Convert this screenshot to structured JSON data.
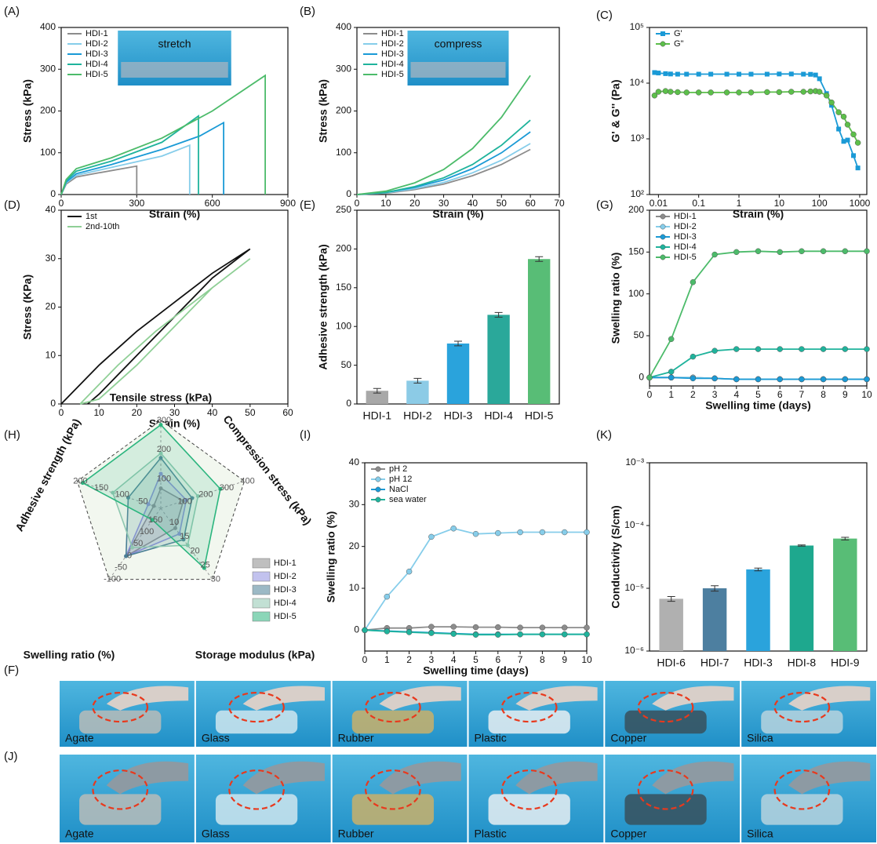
{
  "chart_data": [
    {
      "type": "line",
      "label": "(A)",
      "xlabel": "Strain (%)",
      "ylabel": "Stress (kPa)",
      "inset": "stretch",
      "legend": "upper left",
      "xlim": [
        0,
        900
      ],
      "xticks": [
        0,
        300,
        600,
        900
      ],
      "ylim": [
        0,
        400
      ],
      "yticks": [
        0,
        100,
        200,
        300,
        400
      ],
      "series": [
        {
          "name": "HDI-1",
          "color": "#8c8c8c",
          "x": [
            0,
            20,
            60,
            150,
            300,
            300
          ],
          "values": [
            0,
            25,
            42,
            52,
            68,
            0
          ]
        },
        {
          "name": "HDI-2",
          "color": "#86cdea",
          "x": [
            0,
            20,
            60,
            200,
            400,
            510,
            510
          ],
          "values": [
            0,
            28,
            46,
            65,
            92,
            118,
            0
          ]
        },
        {
          "name": "HDI-3",
          "color": "#1a9ad6",
          "x": [
            0,
            20,
            60,
            200,
            400,
            550,
            645,
            645
          ],
          "values": [
            0,
            30,
            50,
            72,
            108,
            140,
            172,
            0
          ]
        },
        {
          "name": "HDI-4",
          "color": "#1fb39c",
          "x": [
            0,
            20,
            60,
            200,
            400,
            545,
            545
          ],
          "values": [
            0,
            33,
            56,
            80,
            125,
            188,
            0
          ]
        },
        {
          "name": "HDI-5",
          "color": "#4cbb6a",
          "x": [
            0,
            20,
            60,
            200,
            400,
            600,
            810,
            810
          ],
          "values": [
            0,
            36,
            62,
            88,
            135,
            200,
            285,
            0
          ]
        }
      ]
    },
    {
      "type": "line",
      "label": "(B)",
      "xlabel": "Strain (%)",
      "ylabel": "Stress (kPa)",
      "inset": "compress",
      "legend": "upper left",
      "xlim": [
        0,
        70
      ],
      "xticks": [
        0,
        10,
        20,
        30,
        40,
        50,
        60,
        70
      ],
      "ylim": [
        0,
        400
      ],
      "yticks": [
        0,
        100,
        200,
        300,
        400
      ],
      "x": [
        0,
        10,
        20,
        30,
        40,
        50,
        60
      ],
      "series": [
        {
          "name": "HDI-1",
          "color": "#8c8c8c",
          "values": [
            0,
            3,
            12,
            25,
            45,
            72,
            108
          ]
        },
        {
          "name": "HDI-2",
          "color": "#86cdea",
          "values": [
            0,
            4,
            14,
            29,
            52,
            82,
            122
          ]
        },
        {
          "name": "HDI-3",
          "color": "#1a9ad6",
          "values": [
            0,
            5,
            17,
            35,
            62,
            100,
            150
          ]
        },
        {
          "name": "HDI-4",
          "color": "#1fb39c",
          "values": [
            0,
            5,
            19,
            40,
            72,
            118,
            178
          ]
        },
        {
          "name": "HDI-5",
          "color": "#4cbb6a",
          "values": [
            0,
            8,
            28,
            60,
            110,
            185,
            285
          ]
        }
      ]
    },
    {
      "type": "line",
      "label": "(C)",
      "xlabel": "Strain (%)",
      "ylabel": "G' & G'' (Pa)",
      "legend": "upper left",
      "markers": true,
      "xlog": true,
      "ylog": true,
      "xlim": [
        0.006,
        1500
      ],
      "xticks": [
        0.01,
        0.1,
        1,
        10,
        100,
        1000
      ],
      "ylim": [
        100,
        100000
      ],
      "yticks": [
        {
          "value": 100,
          "label": "10²"
        },
        {
          "value": 1000,
          "label": "10³"
        },
        {
          "value": 10000,
          "label": "10⁴"
        },
        {
          "value": 100000,
          "label": "10⁵"
        }
      ],
      "x": [
        0.008,
        0.01,
        0.015,
        0.02,
        0.03,
        0.05,
        0.1,
        0.2,
        0.5,
        1,
        2,
        5,
        10,
        20,
        40,
        60,
        80,
        100,
        150,
        200,
        300,
        400,
        500,
        700,
        900
      ],
      "series": [
        {
          "name": "G'",
          "color": "#1a9ad6",
          "marker": "square",
          "values": [
            15500,
            15200,
            14800,
            14600,
            14500,
            14500,
            14500,
            14500,
            14500,
            14500,
            14500,
            14500,
            14600,
            14600,
            14500,
            14400,
            14000,
            12000,
            6500,
            4000,
            1500,
            900,
            950,
            500,
            300
          ]
        },
        {
          "name": "G\"",
          "color": "#5cbf4a",
          "marker": "circle",
          "values": [
            6000,
            7000,
            7200,
            7000,
            6900,
            6800,
            6800,
            6800,
            6800,
            6800,
            6800,
            6900,
            6900,
            7000,
            7000,
            7100,
            7200,
            7000,
            6000,
            4500,
            3000,
            2500,
            1800,
            1200,
            850
          ]
        }
      ]
    },
    {
      "type": "line",
      "label": "(D)",
      "xlabel": "Strain (%)",
      "ylabel": "Stress (KPa)",
      "legend": "upper left",
      "xlim": [
        0,
        60
      ],
      "xticks": [
        0,
        10,
        20,
        30,
        40,
        50,
        60
      ],
      "ylim": [
        0,
        40
      ],
      "yticks": [
        0,
        10,
        20,
        30,
        40
      ],
      "series": [
        {
          "name": "1st",
          "color": "#111111",
          "x": [
            0,
            10,
            20,
            30,
            40,
            50,
            40,
            30,
            20,
            10,
            7
          ],
          "values": [
            0,
            8,
            15,
            21,
            27,
            32,
            26,
            18,
            10,
            2,
            0
          ]
        },
        {
          "name": "2nd-10th",
          "color": "#8fcf96",
          "x": [
            5,
            15,
            25,
            35,
            45,
            50,
            40,
            30,
            20,
            10,
            5
          ],
          "values": [
            0,
            8,
            15,
            21,
            27,
            30,
            24,
            16,
            8,
            1,
            0
          ]
        }
      ]
    },
    {
      "type": "bar",
      "label": "(E)",
      "ylabel": "Adhesive strength (kPa)",
      "ylim": [
        0,
        250
      ],
      "yticks": [
        0,
        50,
        100,
        150,
        200,
        250
      ],
      "categories": [
        "HDI-1",
        "HDI-2",
        "HDI-3",
        "HDI-4",
        "HDI-5"
      ],
      "values": [
        17,
        30,
        78,
        115,
        187
      ],
      "errors": [
        3,
        3,
        3,
        3,
        3
      ],
      "colors": [
        "#a8a8a8",
        "#8ccbe6",
        "#2aa3dc",
        "#2aa89a",
        "#58bd76"
      ]
    },
    {
      "type": "line",
      "label": "(G)",
      "xlabel": "Swelling time (days)",
      "ylabel": "Swelling ratio (%)",
      "legend": "upper left",
      "markers": true,
      "xlim": [
        0,
        10
      ],
      "xticks": [
        0,
        1,
        2,
        3,
        4,
        5,
        6,
        7,
        8,
        9,
        10
      ],
      "ylim": [
        -10,
        200
      ],
      "yticks": [
        0,
        50,
        100,
        150,
        200
      ],
      "x": [
        0,
        1,
        2,
        3,
        4,
        5,
        6,
        7,
        8,
        9,
        10
      ],
      "series": [
        {
          "name": "HDI-1",
          "color": "#8c8c8c",
          "values": [
            0,
            0,
            0,
            -1,
            -2,
            -2,
            -2,
            -2,
            -2,
            -2,
            -2
          ]
        },
        {
          "name": "HDI-2",
          "color": "#86cdea",
          "values": [
            0,
            0,
            0,
            -1,
            -2,
            -2,
            -2,
            -2,
            -2,
            -2,
            -2
          ]
        },
        {
          "name": "HDI-3",
          "color": "#1a9ad6",
          "values": [
            0,
            0,
            -1,
            -1,
            -2,
            -2,
            -2,
            -2,
            -2,
            -2,
            -2
          ]
        },
        {
          "name": "HDI-4",
          "color": "#1fb39c",
          "values": [
            0,
            7,
            25,
            32,
            34,
            34,
            34,
            34,
            34,
            34,
            34
          ]
        },
        {
          "name": "HDI-5",
          "color": "#4cbb6a",
          "values": [
            0,
            46,
            114,
            147,
            150,
            151,
            150,
            151,
            151,
            151,
            151
          ]
        }
      ]
    },
    {
      "type": "radar",
      "label": "(H)",
      "legend": "lower right",
      "axes": [
        {
          "name": "Tensile stress (kPa)",
          "lim": [
            0,
            300
          ],
          "ticks": [
            100,
            200,
            300
          ]
        },
        {
          "name": "Compression stress (kPa)",
          "lim": [
            0,
            400
          ],
          "ticks": [
            100,
            200,
            300,
            400
          ]
        },
        {
          "name": "Storage modulus (kPa)",
          "lim": [
            5,
            30
          ],
          "ticks": [
            10,
            15,
            20,
            25,
            30
          ]
        },
        {
          "name": "Swelling ratio (%)",
          "lim": [
            200,
            -100
          ],
          "ticks": [
            150,
            100,
            50,
            0,
            -50,
            -100
          ]
        },
        {
          "name": "Adhesive strength (kPa)",
          "lim": [
            0,
            200
          ],
          "ticks": [
            50,
            100,
            150,
            200
          ]
        }
      ],
      "series": [
        {
          "name": "HDI-1",
          "color": "#8a8a8a",
          "values": [
            68,
            108,
            12,
            -2,
            17
          ]
        },
        {
          "name": "HDI-2",
          "color": "#8f8fe0",
          "values": [
            118,
            122,
            14,
            -2,
            30
          ]
        },
        {
          "name": "HDI-3",
          "color": "#4a7f95",
          "values": [
            172,
            150,
            16,
            -2,
            78
          ]
        },
        {
          "name": "HDI-4",
          "color": "#8fc7b0",
          "values": [
            188,
            178,
            18,
            34,
            115
          ]
        },
        {
          "name": "HDI-5",
          "color": "#2bb57e",
          "values": [
            285,
            285,
            26,
            151,
            187
          ]
        }
      ]
    },
    {
      "type": "line",
      "label": "(I)",
      "xlabel": "Swelling time (days)",
      "ylabel": "Swelling ratio (%)",
      "legend": "upper left",
      "markers": true,
      "xlim": [
        0,
        10
      ],
      "xticks": [
        0,
        1,
        2,
        3,
        4,
        5,
        6,
        7,
        8,
        9,
        10
      ],
      "ylim": [
        -5,
        40
      ],
      "yticks": [
        0,
        10,
        20,
        30,
        40
      ],
      "x": [
        0,
        1,
        2,
        3,
        4,
        5,
        6,
        7,
        8,
        9,
        10
      ],
      "series": [
        {
          "name": "pH 2",
          "color": "#8c8c8c",
          "values": [
            0,
            0.5,
            0.5,
            0.8,
            0.8,
            0.7,
            0.7,
            0.6,
            0.6,
            0.6,
            0.6
          ]
        },
        {
          "name": "pH 12",
          "color": "#86cdea",
          "values": [
            0,
            8,
            14,
            22.3,
            24.3,
            23,
            23.2,
            23.4,
            23.4,
            23.4,
            23.4
          ]
        },
        {
          "name": "NaCl",
          "color": "#1a9ad6",
          "values": [
            0,
            -0.2,
            -0.4,
            -0.6,
            -0.8,
            -1,
            -1,
            -1,
            -1,
            -1,
            -1
          ]
        },
        {
          "name": "sea water",
          "color": "#1fb39c",
          "values": [
            0,
            -0.3,
            -0.5,
            -0.7,
            -0.9,
            -1.1,
            -1.1,
            -1,
            -1,
            -1,
            -1
          ]
        }
      ]
    },
    {
      "type": "bar",
      "label": "(K)",
      "ylabel": "Conductivity (S/cm)",
      "ylog": true,
      "ylim": [
        1e-06,
        0.001
      ],
      "yticks": [
        {
          "value": 1e-06,
          "label": "10⁻⁶"
        },
        {
          "value": 1e-05,
          "label": "10⁻⁵"
        },
        {
          "value": 0.0001,
          "label": "10⁻⁴"
        },
        {
          "value": 0.001,
          "label": "10⁻³"
        }
      ],
      "categories": [
        "HDI-6",
        "HDI-7",
        "HDI-3",
        "HDI-8",
        "HDI-9"
      ],
      "values": [
        6.8e-06,
        1e-05,
        2e-05,
        4.8e-05,
        6.2e-05
      ],
      "errors": [
        6e-07,
        1e-06,
        1e-06,
        1e-06,
        3e-06
      ],
      "colors": [
        "#b0b0b0",
        "#4d7fa0",
        "#2aa3dc",
        "#1ea88e",
        "#58bd76"
      ]
    }
  ],
  "photos": [
    {
      "label": "(F)",
      "captions": [
        "Agate",
        "Glass",
        "Rubber",
        "Plastic",
        "Copper",
        "Silica"
      ]
    },
    {
      "label": "(J)",
      "captions": [
        "Agate",
        "Glass",
        "Rubber",
        "Plastic",
        "Copper",
        "Silica"
      ]
    }
  ]
}
